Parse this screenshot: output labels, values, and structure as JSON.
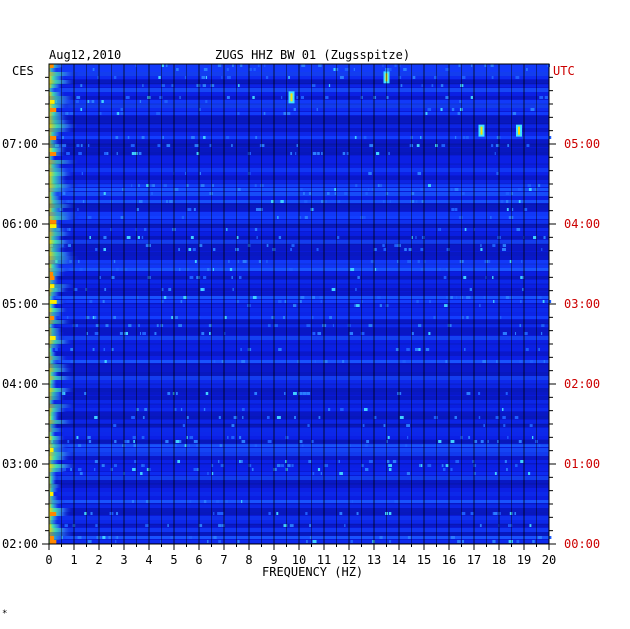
{
  "header": {
    "date": "Aug12,2010",
    "station": "ZUGS HHZ BW 01 (Zugsspitze)"
  },
  "left_axis": {
    "tz_label": "CES",
    "tick_labels": [
      "07:00",
      "06:00",
      "05:00",
      "04:00",
      "03:00",
      "02:00"
    ]
  },
  "right_axis": {
    "tz_label": "UTC",
    "tick_labels": [
      "05:00",
      "04:00",
      "03:00",
      "02:00",
      "01:00",
      "00:00"
    ]
  },
  "colors": {
    "utc": "#cc0000",
    "grid": "#000000",
    "background": "#0a1ad6"
  },
  "chart_data": {
    "type": "heatmap",
    "title": "ZUGS HHZ BW 01 (Zugsspitze)",
    "date": "Aug12,2010",
    "xlabel": "FREQUENCY (HZ)",
    "x_ticks": [
      0,
      1,
      2,
      3,
      4,
      5,
      6,
      7,
      8,
      9,
      10,
      11,
      12,
      13,
      14,
      15,
      16,
      17,
      18,
      19,
      20
    ],
    "xlim": [
      0,
      20
    ],
    "y_left_label": "CES",
    "y_right_label": "UTC",
    "y_left_ticks": [
      "02:00",
      "03:00",
      "04:00",
      "05:00",
      "06:00",
      "07:00"
    ],
    "y_right_ticks": [
      "00:00",
      "01:00",
      "02:00",
      "03:00",
      "04:00",
      "05:00"
    ],
    "ylim_cest_hours": [
      2.0,
      7.95
    ],
    "colormap": "jet",
    "grid": true,
    "features": [
      {
        "freq_hz": [
          0,
          1
        ],
        "note": "strong low-frequency energy along left edge"
      },
      {
        "freq_hz": 9.7,
        "time_cest": "07:35",
        "note": "yellow burst"
      },
      {
        "freq_hz": 13.5,
        "time_cest": "07:50",
        "note": "bright band near top"
      },
      {
        "freq_hz": 17.3,
        "time_cest": "07:10",
        "note": "cyan patch"
      },
      {
        "freq_hz": 18.8,
        "time_cest": "07:10",
        "note": "cyan patch"
      }
    ]
  },
  "footer": {
    "mark": "*"
  }
}
